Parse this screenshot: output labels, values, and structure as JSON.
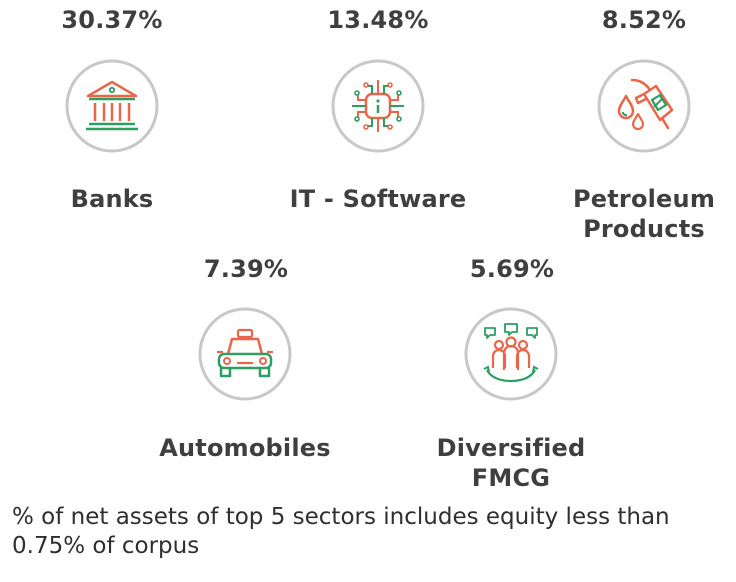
{
  "sectors": [
    {
      "name": "Banks",
      "percent": "30.37%",
      "icon": "bank-building-icon"
    },
    {
      "name": "IT - Software",
      "percent": "13.48%",
      "icon": "circuit-chip-icon"
    },
    {
      "name": "Petroleum Products",
      "name_line1": "Petroleum",
      "name_line2": "Products",
      "percent": "8.52%",
      "icon": "fuel-nozzle-icon"
    },
    {
      "name": "Automobiles",
      "percent": "7.39%",
      "icon": "car-icon"
    },
    {
      "name": "Diversified FMCG",
      "name_line1": "Diversified",
      "name_line2": "FMCG",
      "percent": "5.69%",
      "icon": "people-group-icon"
    }
  ],
  "footnote": "% of net assets of top 5 sectors includes equity less than 0.75% of corpus",
  "colors": {
    "text": "#3f3f3f",
    "circle": "#c8c8c8",
    "accent_orange": "#e8674a",
    "accent_green": "#2e9e63"
  }
}
